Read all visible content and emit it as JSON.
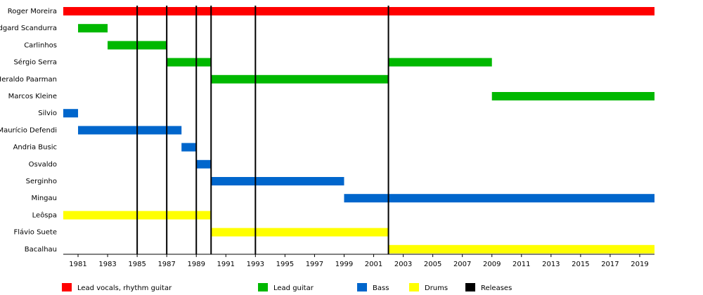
{
  "chart_data": {
    "type": "timeline",
    "xlim": [
      1980,
      2020
    ],
    "xticks": [
      1981,
      1983,
      1985,
      1987,
      1989,
      1991,
      1993,
      1995,
      1997,
      1999,
      2001,
      2003,
      2005,
      2007,
      2009,
      2011,
      2013,
      2015,
      2017,
      2019
    ],
    "series": [
      {
        "name": "Lead vocals, rhythm guitar",
        "color": "#ff0000",
        "members": [
          {
            "name": "Roger Moreira",
            "periods": [
              [
                1980,
                2020
              ]
            ]
          }
        ]
      },
      {
        "name": "Lead guitar",
        "color": "#00b800",
        "members": [
          {
            "name": "Edgard Scandurra",
            "periods": [
              [
                1981,
                1983
              ]
            ]
          },
          {
            "name": "Carlinhos",
            "periods": [
              [
                1983,
                1987
              ]
            ]
          },
          {
            "name": "Sérgio Serra",
            "periods": [
              [
                1987,
                1990
              ],
              [
                2002,
                2009
              ]
            ]
          },
          {
            "name": "Heraldo Paarman",
            "periods": [
              [
                1990,
                2002
              ]
            ]
          },
          {
            "name": "Marcos Kleine",
            "periods": [
              [
                2009,
                2020
              ]
            ]
          }
        ]
      },
      {
        "name": "Bass",
        "color": "#0066cc",
        "members": [
          {
            "name": "Silvio",
            "periods": [
              [
                1980,
                1981
              ]
            ]
          },
          {
            "name": "Maurício Defendi",
            "periods": [
              [
                1981,
                1988
              ]
            ]
          },
          {
            "name": "Andria Busic",
            "periods": [
              [
                1988,
                1989
              ]
            ]
          },
          {
            "name": "Osvaldo",
            "periods": [
              [
                1989,
                1990
              ]
            ]
          },
          {
            "name": "Serginho",
            "periods": [
              [
                1990,
                1999
              ]
            ]
          },
          {
            "name": "Mingau",
            "periods": [
              [
                1999,
                2020
              ]
            ]
          }
        ]
      },
      {
        "name": "Drums",
        "color": "#ffff00",
        "members": [
          {
            "name": "Leôspa",
            "periods": [
              [
                1980,
                1990
              ]
            ]
          },
          {
            "name": "Flávio Suete",
            "periods": [
              [
                1990,
                2002
              ]
            ]
          },
          {
            "name": "Bacalhau",
            "periods": [
              [
                2002,
                2020
              ]
            ]
          }
        ]
      }
    ],
    "releases": {
      "name": "Releases",
      "color": "#000000",
      "x": [
        1985,
        1987,
        1989,
        1990,
        1993,
        2002
      ]
    }
  }
}
